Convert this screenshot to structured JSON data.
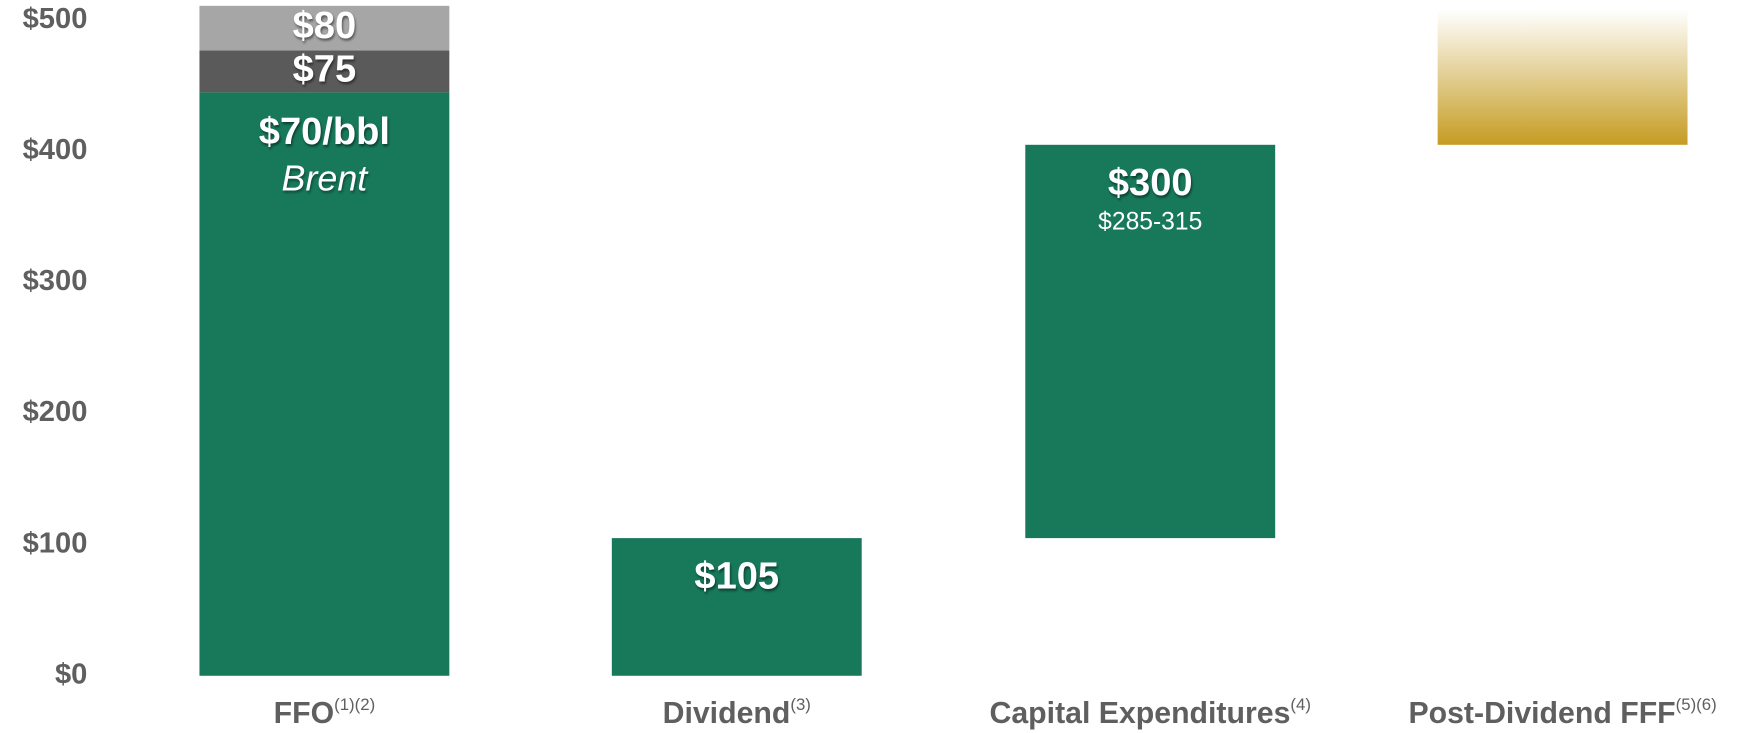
{
  "chart_data": {
    "type": "waterfall",
    "categories": [
      "FFO",
      "Dividend",
      "Capital Expenditures",
      "Post-Dividend FFF"
    ],
    "footnotes": [
      "(1)(2)",
      "(3)",
      "(4)",
      "(5)(6)"
    ],
    "ylim": [
      0,
      500
    ],
    "yticks": [
      {
        "value": 0,
        "label": "$0"
      },
      {
        "value": 100,
        "label": "$100"
      },
      {
        "value": 200,
        "label": "$200"
      },
      {
        "value": 300,
        "label": "$300"
      },
      {
        "value": 400,
        "label": "$400"
      },
      {
        "value": 500,
        "label": "$500"
      }
    ],
    "ffo_segments": [
      {
        "name": "$70/bbl",
        "sublabel": "Brent",
        "value": 445,
        "color": "#17785a"
      },
      {
        "name": "$75",
        "value": 32,
        "color": "#5a5a5a"
      },
      {
        "name": "$80",
        "value": 34,
        "color": "#a6a6a6"
      }
    ],
    "steps": [
      {
        "value": 105,
        "value_label": "$105",
        "color": "#17785a"
      },
      {
        "value": 300,
        "value_label": "$300",
        "range_label": "$285-315",
        "color": "#17785a"
      },
      {
        "value": 103,
        "color": "#c59c22",
        "gradient": true
      }
    ]
  }
}
